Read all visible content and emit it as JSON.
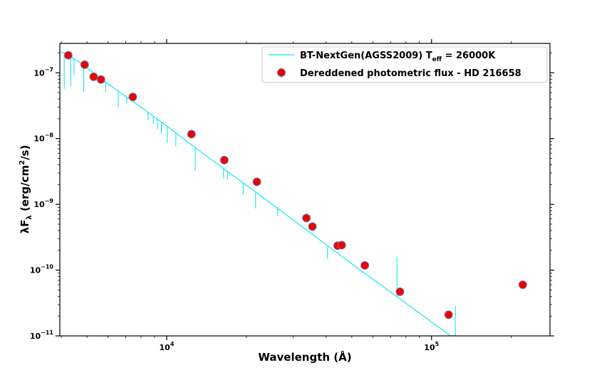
{
  "chart_data": {
    "type": "scatter",
    "title": "",
    "xlabel": "Wavelength (Å)",
    "ylabel": "λF",
    "ylabel_sub": "λ",
    "ylabel_unit": " (erg/cm",
    "ylabel_unit_sup": "2",
    "ylabel_unit_end": "/s)",
    "x_scale": "log",
    "y_scale": "log",
    "xlim": [
      3950,
      280000
    ],
    "ylim": [
      1e-11,
      2.8e-07
    ],
    "grid": false,
    "legend_position": "top-right",
    "x_ticks": [
      {
        "value": 10000,
        "base": "10",
        "exp": "4"
      },
      {
        "value": 100000,
        "base": "10",
        "exp": "5"
      }
    ],
    "y_ticks": [
      {
        "value": 1e-07,
        "base": "10",
        "exp": "−7"
      },
      {
        "value": 1e-08,
        "base": "10",
        "exp": "−8"
      },
      {
        "value": 1e-09,
        "base": "10",
        "exp": "−9"
      },
      {
        "value": 1e-10,
        "base": "10",
        "exp": "−10"
      },
      {
        "value": 1e-11,
        "base": "10",
        "exp": "−11"
      }
    ],
    "series": [
      {
        "name": "BT-NextGen(AGSS2009) T",
        "name_sub": "eff",
        "name_end": " = 26000K",
        "kind": "line",
        "color": "#00e5ee",
        "x": [
          3950,
          4100,
          4300,
          4500,
          4800,
          5200,
          5600,
          6000,
          6600,
          7200,
          8000,
          9000,
          10000,
          12000,
          14000,
          16000,
          18000,
          21000,
          25000,
          30000,
          35000,
          40000,
          45000,
          50000,
          55000,
          60000,
          70000,
          80000,
          90000,
          100000,
          110000,
          120000,
          127000
        ],
        "y": [
          2.1e-07,
          2e-07,
          1.8e-07,
          1.6e-07,
          1.35e-07,
          1.05e-07,
          8.4e-08,
          6.8e-08,
          5.2e-08,
          4.05e-08,
          3e-08,
          2.12e-08,
          1.56e-08,
          8.9e-09,
          5.6e-09,
          3.78e-09,
          2.66e-09,
          1.69e-09,
          1.01e-09,
          5.8e-10,
          3.65e-10,
          2.43e-10,
          1.71e-10,
          1.25e-10,
          9.4e-11,
          7.3e-11,
          4.65e-11,
          3.14e-11,
          2.22e-11,
          1.63e-11,
          1.23e-11,
          9.6e-12,
          8.2e-12
        ],
        "absorption_lines": [
          {
            "x": 4102,
            "depth": 0.55
          },
          {
            "x": 4340,
            "depth": 0.45
          },
          {
            "x": 4471,
            "depth": 0.25
          },
          {
            "x": 4861,
            "depth": 0.4
          },
          {
            "x": 5876,
            "depth": 0.15
          },
          {
            "x": 6563,
            "depth": 0.25
          },
          {
            "x": 7065,
            "depth": 0.1
          },
          {
            "x": 8500,
            "depth": 0.12
          },
          {
            "x": 8900,
            "depth": 0.12
          },
          {
            "x": 9230,
            "depth": 0.15
          },
          {
            "x": 9550,
            "depth": 0.18
          },
          {
            "x": 10050,
            "depth": 0.25
          },
          {
            "x": 10830,
            "depth": 0.2
          },
          {
            "x": 12818,
            "depth": 0.35
          },
          {
            "x": 16400,
            "depth": 0.15
          },
          {
            "x": 17000,
            "depth": 0.12
          },
          {
            "x": 19450,
            "depth": 0.18
          },
          {
            "x": 21660,
            "depth": 0.25
          },
          {
            "x": 26250,
            "depth": 0.12
          },
          {
            "x": 40500,
            "depth": 0.2
          },
          {
            "x": 74000,
            "depth": -0.6
          },
          {
            "x": 123000,
            "depth": -0.5
          }
        ]
      },
      {
        "name": "Dereddened photometric flux - HD 216658",
        "kind": "scatter",
        "color": "#ee0000",
        "edge_color": "#6a7fb0",
        "x": [
          4250,
          4900,
          5300,
          5650,
          7450,
          12400,
          16500,
          21900,
          33700,
          35500,
          44200,
          45800,
          56000,
          76000,
          116000,
          221000
        ],
        "y": [
          1.85e-07,
          1.33e-07,
          8.7e-08,
          7.9e-08,
          4.3e-08,
          1.17e-08,
          4.7e-09,
          2.2e-09,
          6.2e-10,
          4.6e-10,
          2.35e-10,
          2.4e-10,
          1.18e-10,
          4.7e-11,
          2.1e-11,
          6e-11
        ]
      }
    ]
  }
}
